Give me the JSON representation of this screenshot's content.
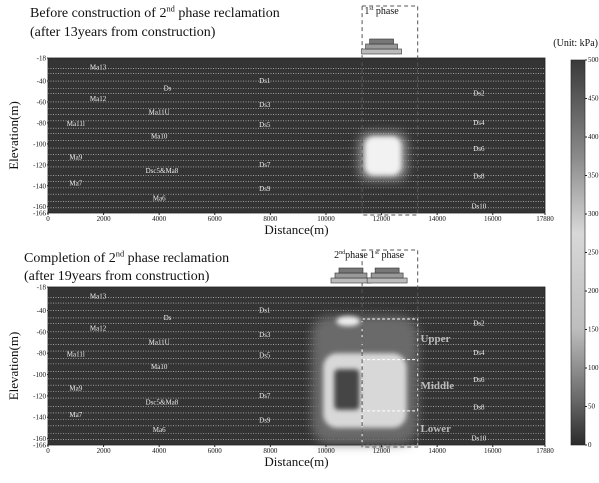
{
  "chart_data": [
    {
      "type": "contour",
      "title": [
        "Before construction of 2",
        "nd",
        " phase reclamation"
      ],
      "subtitle": "(after 13years from construction)",
      "phase_labels": [
        [
          "1",
          "st",
          " phase"
        ]
      ],
      "xlabel": "Distance(m)",
      "ylabel": "Elevation(m)",
      "xlim": [
        0,
        17880
      ],
      "xticks": [
        0,
        2000,
        4000,
        6000,
        8000,
        10000,
        12000,
        14000,
        16000,
        17880
      ],
      "ylim": [
        -166,
        -18
      ],
      "yticks": [
        -18,
        -40,
        -60,
        -80,
        -100,
        -120,
        -140,
        -160,
        -166
      ],
      "layer_labels": [
        "Ma13",
        "Ds",
        "Ma12",
        "Ma11U",
        "Ma11l",
        "Ma10",
        "Ma9",
        "Dsc5&Ma8",
        "Ma7",
        "Ma6",
        "Ds1",
        "Ds3",
        "Ds5",
        "Ds7",
        "Ds9",
        "Ds2",
        "Ds4",
        "Ds6",
        "Ds8",
        "Ds10"
      ],
      "colorbar": {
        "title": "(Unit: kPa)",
        "lim": [
          0,
          500
        ],
        "ticks": [
          0,
          50,
          100,
          150,
          200,
          250,
          300,
          350,
          400,
          450,
          500
        ]
      }
    },
    {
      "type": "contour",
      "title": [
        "Completion of 2",
        "nd",
        " phase reclamation"
      ],
      "subtitle": "(after 19years from construction)",
      "phase_labels": [
        [
          "2",
          "nd",
          "phase"
        ],
        [
          "1",
          "st",
          " phase"
        ]
      ],
      "xlabel": "Distance(m)",
      "ylabel": "Elevation(m)",
      "xlim": [
        0,
        17880
      ],
      "xticks": [
        0,
        2000,
        4000,
        6000,
        8000,
        10000,
        12000,
        14000,
        16000,
        17880
      ],
      "ylim": [
        -166,
        -18
      ],
      "yticks": [
        -18,
        -40,
        -60,
        -80,
        -100,
        -120,
        -140,
        -160,
        -166
      ],
      "layer_labels": [
        "Ma13",
        "Ds",
        "Ma12",
        "Ma11U",
        "Ma11l",
        "Ma10",
        "Ma9",
        "Dsc5&Ma8",
        "Ma7",
        "Ma6",
        "Ds1",
        "Ds3",
        "Ds5",
        "Ds7",
        "Ds9",
        "Ds2",
        "Ds4",
        "Ds6",
        "Ds8",
        "Ds10"
      ],
      "zone_labels": [
        "Upper",
        "Middle",
        "Lower"
      ]
    }
  ]
}
